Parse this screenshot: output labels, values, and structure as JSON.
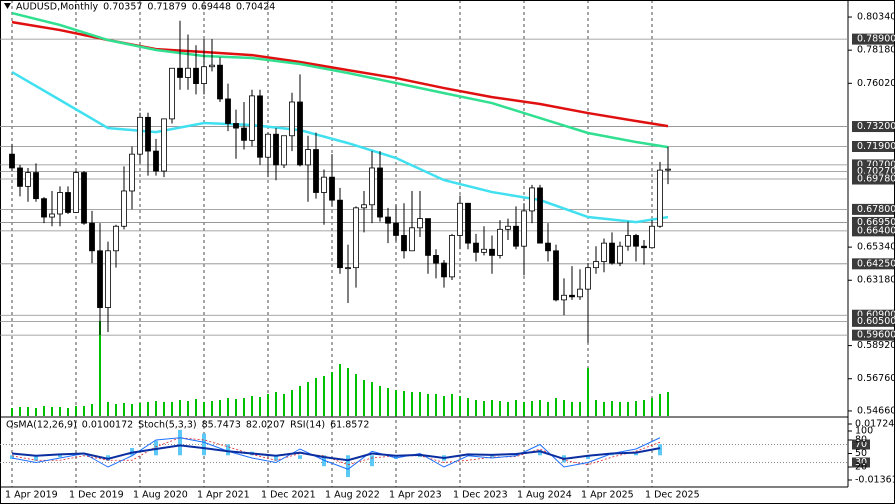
{
  "chart_data": {
    "type": "candlestick",
    "title": "AUDUSD,Monthly",
    "categories": [
      "1 Apr 2019",
      null,
      null,
      null,
      null,
      null,
      null,
      null,
      "1 Dec 2019",
      null,
      null,
      null,
      null,
      null,
      null,
      null,
      "1 Aug 2020",
      null,
      null,
      null,
      null,
      null,
      null,
      null,
      "1 Apr 2021",
      null,
      null,
      null,
      null,
      null,
      null,
      null,
      "1 Dec 2021",
      null,
      null,
      null,
      null,
      null,
      null,
      null,
      "1 Aug 2022",
      null,
      null,
      null,
      null,
      null,
      null,
      null,
      "1 Apr 2023",
      null,
      null,
      null,
      null,
      null,
      null,
      null,
      "1 Dec 2023",
      null,
      null,
      null,
      null,
      null,
      null,
      null,
      "1 Aug 2024",
      null,
      null,
      null,
      null,
      null,
      null,
      null,
      "1 Apr 2025",
      null,
      null,
      null,
      null,
      null,
      null,
      null,
      "1 Dec 2025",
      null,
      null
    ],
    "open": [
      0.714,
      0.705,
      0.693,
      0.702,
      0.685,
      0.673,
      0.675,
      0.689,
      0.676,
      0.702,
      0.669,
      0.651,
      0.614,
      0.651,
      0.667,
      0.69,
      0.714,
      0.738,
      0.716,
      0.703,
      0.737,
      0.77,
      0.764,
      0.77,
      0.76,
      0.771,
      0.772,
      0.75,
      0.734,
      0.731,
      0.723,
      0.752,
      0.712,
      0.727,
      0.707,
      0.726,
      0.748,
      0.707,
      0.717,
      0.689,
      0.699,
      0.684,
      0.64,
      0.64,
      0.679,
      0.681,
      0.705,
      0.673,
      0.669,
      0.661,
      0.651,
      0.666,
      0.672,
      0.648,
      0.643,
      0.634,
      0.661,
      0.682,
      0.656,
      0.65,
      0.652,
      0.648,
      0.665,
      0.667,
      0.654,
      0.677,
      0.692,
      0.656,
      0.651,
      0.619,
      0.622,
      0.621,
      0.626,
      0.64,
      0.644,
      0.656,
      0.643,
      0.654,
      0.661,
      0.654,
      0.653,
      0.667,
      0.70357
    ],
    "high": [
      0.7207,
      0.707,
      0.705,
      0.708,
      0.686,
      0.69,
      0.693,
      0.693,
      0.703,
      0.703,
      0.677,
      0.669,
      0.657,
      0.668,
      0.706,
      0.719,
      0.741,
      0.741,
      0.724,
      0.737,
      0.77,
      0.801,
      0.792,
      0.785,
      0.789,
      0.789,
      0.777,
      0.76,
      0.743,
      0.748,
      0.756,
      0.756,
      0.728,
      0.731,
      0.725,
      0.754,
      0.766,
      0.726,
      0.728,
      0.704,
      0.714,
      0.692,
      0.655,
      0.68,
      0.69,
      0.716,
      0.716,
      0.679,
      0.681,
      0.682,
      0.69,
      0.69,
      0.672,
      0.652,
      0.645,
      0.662,
      0.687,
      0.682,
      0.662,
      0.667,
      0.661,
      0.671,
      0.672,
      0.68,
      0.682,
      0.694,
      0.694,
      0.669,
      0.655,
      0.633,
      0.641,
      0.639,
      0.643,
      0.654,
      0.659,
      0.663,
      0.657,
      0.67,
      0.662,
      0.658,
      0.671,
      0.709,
      0.71879
    ],
    "low": [
      0.703,
      0.6865,
      0.683,
      0.683,
      0.669,
      0.667,
      0.667,
      0.675,
      0.676,
      0.668,
      0.643,
      0.596,
      0.598,
      0.64,
      0.665,
      0.678,
      0.708,
      0.7,
      0.7,
      0.699,
      0.734,
      0.756,
      0.756,
      0.753,
      0.753,
      0.768,
      0.748,
      0.729,
      0.711,
      0.717,
      0.719,
      0.707,
      0.699,
      0.697,
      0.705,
      0.716,
      0.706,
      0.683,
      0.685,
      0.668,
      0.68,
      0.636,
      0.617,
      0.627,
      0.663,
      0.669,
      0.67,
      0.656,
      0.657,
      0.646,
      0.651,
      0.66,
      0.636,
      0.633,
      0.627,
      0.632,
      0.652,
      0.652,
      0.644,
      0.648,
      0.636,
      0.646,
      0.658,
      0.652,
      0.635,
      0.669,
      0.656,
      0.644,
      0.618,
      0.609,
      0.619,
      0.619,
      0.591,
      0.636,
      0.637,
      0.642,
      0.641,
      0.651,
      0.644,
      0.642,
      0.653,
      0.666,
      0.69448
    ],
    "close": [
      0.705,
      0.693,
      0.702,
      0.685,
      0.673,
      0.675,
      0.689,
      0.676,
      0.702,
      0.669,
      0.651,
      0.614,
      0.651,
      0.667,
      0.69,
      0.714,
      0.738,
      0.716,
      0.703,
      0.737,
      0.77,
      0.764,
      0.77,
      0.76,
      0.771,
      0.772,
      0.75,
      0.734,
      0.731,
      0.723,
      0.752,
      0.712,
      0.727,
      0.707,
      0.726,
      0.748,
      0.707,
      0.717,
      0.689,
      0.699,
      0.684,
      0.64,
      0.64,
      0.679,
      0.681,
      0.705,
      0.673,
      0.669,
      0.661,
      0.651,
      0.666,
      0.672,
      0.648,
      0.643,
      0.634,
      0.661,
      0.682,
      0.656,
      0.65,
      0.652,
      0.648,
      0.665,
      0.667,
      0.654,
      0.677,
      0.692,
      0.656,
      0.651,
      0.619,
      0.622,
      0.621,
      0.626,
      0.64,
      0.644,
      0.656,
      0.643,
      0.654,
      0.661,
      0.654,
      0.653,
      0.667,
      0.70357,
      0.70424
    ],
    "ylim": [
      0.5433,
      0.8145
    ],
    "yticks": [
      {
        "value": 0.8034,
        "label": "0.80340"
      },
      {
        "value": 0.7818,
        "label": "0.78180"
      },
      {
        "value": 0.7602,
        "label": "0.76020"
      },
      {
        "value": 0.6534,
        "label": "0.65340"
      },
      {
        "value": 0.6318,
        "label": "0.63180"
      },
      {
        "value": 0.5892,
        "label": "0.58920"
      },
      {
        "value": 0.5676,
        "label": "0.56760"
      },
      {
        "value": 0.5466,
        "label": "0.54660"
      }
    ],
    "levels": [
      {
        "value": 0.789,
        "label": "0.78900"
      },
      {
        "value": 0.732,
        "label": "0.73200"
      },
      {
        "value": 0.719,
        "label": "0.71900"
      },
      {
        "value": 0.707,
        "label": "0.70700"
      },
      {
        "value": 0.7027,
        "label": "0.70270"
      },
      {
        "value": 0.6978,
        "label": "0.69780"
      },
      {
        "value": 0.678,
        "label": "0.67800"
      },
      {
        "value": 0.6695,
        "label": "0.66950"
      },
      {
        "value": 0.664,
        "label": "0.66400"
      },
      {
        "value": 0.6425,
        "label": "0.64250"
      },
      {
        "value": 0.609,
        "label": "0.60900"
      },
      {
        "value": 0.605,
        "label": "0.60500"
      },
      {
        "value": 0.596,
        "label": "0.59600"
      }
    ],
    "ma": [
      {
        "color": "#e01010",
        "x": [
          0,
          6,
          12,
          18,
          24,
          30,
          36,
          42,
          48,
          54,
          60,
          66,
          72,
          78,
          82
        ],
        "values": [
          0.8001,
          0.7949,
          0.7884,
          0.7825,
          0.7806,
          0.7786,
          0.7741,
          0.7688,
          0.7636,
          0.7571,
          0.7512,
          0.7467,
          0.7408,
          0.7356,
          0.7323
        ]
      },
      {
        "color": "#30e090",
        "x": [
          0,
          6,
          12,
          18,
          24,
          30,
          36,
          42,
          48,
          54,
          60,
          66,
          72,
          78,
          82
        ],
        "values": [
          0.806,
          0.7982,
          0.7884,
          0.7819,
          0.778,
          0.7767,
          0.7728,
          0.7669,
          0.7604,
          0.7538,
          0.7473,
          0.7375,
          0.7278,
          0.7219,
          0.7186
        ]
      },
      {
        "color": "#40e0f0",
        "x": [
          0,
          6,
          12,
          18,
          24,
          30,
          36,
          42,
          48,
          54,
          60,
          66,
          72,
          78,
          82
        ],
        "values": [
          0.7675,
          0.7493,
          0.731,
          0.7284,
          0.7343,
          0.733,
          0.7297,
          0.7212,
          0.7115,
          0.6971,
          0.6893,
          0.6841,
          0.673,
          0.6697,
          0.673
        ]
      }
    ],
    "volume": {
      "color": "#00c000",
      "vlim": [
        0,
        100
      ],
      "values": [
        8,
        9,
        9,
        8,
        10,
        9,
        9,
        8,
        10,
        10,
        12,
        95,
        14,
        12,
        13,
        12,
        13,
        14,
        15,
        14,
        14,
        16,
        15,
        17,
        14,
        15,
        16,
        18,
        17,
        18,
        20,
        19,
        22,
        24,
        22,
        26,
        30,
        34,
        38,
        40,
        44,
        52,
        48,
        42,
        36,
        34,
        30,
        28,
        26,
        25,
        24,
        24,
        22,
        22,
        20,
        22,
        20,
        18,
        16,
        15,
        16,
        15,
        14,
        16,
        14,
        15,
        16,
        14,
        18,
        16,
        14,
        14,
        48,
        16,
        14,
        15,
        14,
        14,
        15,
        16,
        18,
        22,
        24
      ]
    },
    "indicators": {
      "x": [
        0,
        3,
        6,
        9,
        12,
        15,
        18,
        21,
        24,
        27,
        30,
        33,
        36,
        39,
        42,
        45,
        48,
        51,
        54,
        57,
        60,
        63,
        66,
        69,
        72,
        75,
        78,
        81
      ],
      "osma": {
        "name": "OsMA(12,26,9)",
        "current": 0.0100172,
        "color": "#5bc8f5",
        "ylim": [
          -0.013619,
          0.017241
        ],
        "yticks": [
          0.017241,
          -0.013619
        ],
        "values": [
          -0.002,
          -0.003,
          -0.001,
          0,
          -0.003,
          0.004,
          0.008,
          0.014,
          0.012,
          0.006,
          0.002,
          -0.003,
          -0.002,
          -0.006,
          -0.012,
          -0.006,
          -0.002,
          -0.001,
          -0.003,
          0.001,
          -0.001,
          0,
          0.003,
          -0.004,
          -0.002,
          0.001,
          0.002,
          0.006
        ]
      },
      "stoch": {
        "name": "Stoch(5,3,3)",
        "current": [
          85.7473,
          82.0207
        ],
        "ylim": [
          0,
          100
        ],
        "yticks": [
          100,
          80,
          50,
          20
        ],
        "levels": [
          70,
          30
        ],
        "main": {
          "color": "#1e70ff",
          "values": [
            40,
            30,
            40,
            50,
            20,
            45,
            80,
            85,
            75,
            55,
            40,
            30,
            60,
            35,
            15,
            55,
            40,
            50,
            20,
            45,
            40,
            45,
            70,
            20,
            30,
            50,
            60,
            85
          ]
        },
        "signal": {
          "color": "#e02020",
          "values": [
            45,
            35,
            35,
            45,
            35,
            35,
            65,
            85,
            80,
            65,
            48,
            35,
            50,
            45,
            25,
            40,
            45,
            45,
            30,
            35,
            42,
            43,
            60,
            35,
            25,
            42,
            55,
            75
          ]
        }
      },
      "rsi": {
        "name": "RSI(14)",
        "current": 61.8572,
        "color": "#0a2ea0",
        "values": [
          50,
          45,
          48,
          50,
          38,
          52,
          60,
          68,
          62,
          55,
          50,
          45,
          52,
          42,
          35,
          50,
          45,
          47,
          40,
          48,
          47,
          49,
          55,
          38,
          45,
          50,
          52,
          62
        ]
      }
    }
  }
}
